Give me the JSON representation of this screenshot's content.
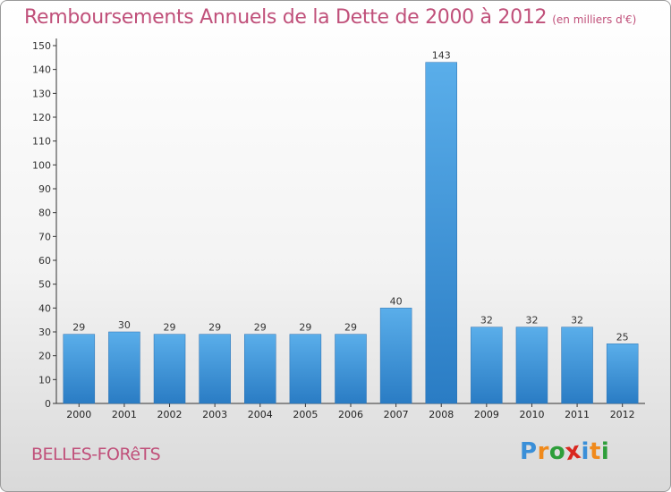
{
  "header": {
    "title": "Remboursements Annuels de la Dette de 2000 à 2012",
    "subtitle": "(en milliers d'€)"
  },
  "footer": {
    "commune": "BELLES-FORêTS",
    "logo_letters": [
      "P",
      "r",
      "o",
      "x",
      "i",
      "t",
      "i"
    ],
    "logo_colors": [
      "#3a8fd8",
      "#f08a1c",
      "#2e9e3a",
      "#d9271f",
      "#3a8fd8",
      "#f08a1c",
      "#2e9e3a"
    ]
  },
  "chart_data": {
    "type": "bar",
    "title": "Remboursements Annuels de la Dette de 2000 à 2012",
    "categories": [
      "2000",
      "2001",
      "2002",
      "2003",
      "2004",
      "2005",
      "2006",
      "2007",
      "2008",
      "2009",
      "2010",
      "2011",
      "2012"
    ],
    "values": [
      29,
      30,
      29,
      29,
      29,
      29,
      29,
      40,
      143,
      32,
      32,
      32,
      25
    ],
    "ylim": [
      0,
      150
    ],
    "yticks": [
      0,
      10,
      20,
      30,
      40,
      50,
      60,
      70,
      80,
      90,
      100,
      110,
      120,
      130,
      140,
      150
    ],
    "grid": false,
    "bar_color": "#3b8fd6"
  }
}
